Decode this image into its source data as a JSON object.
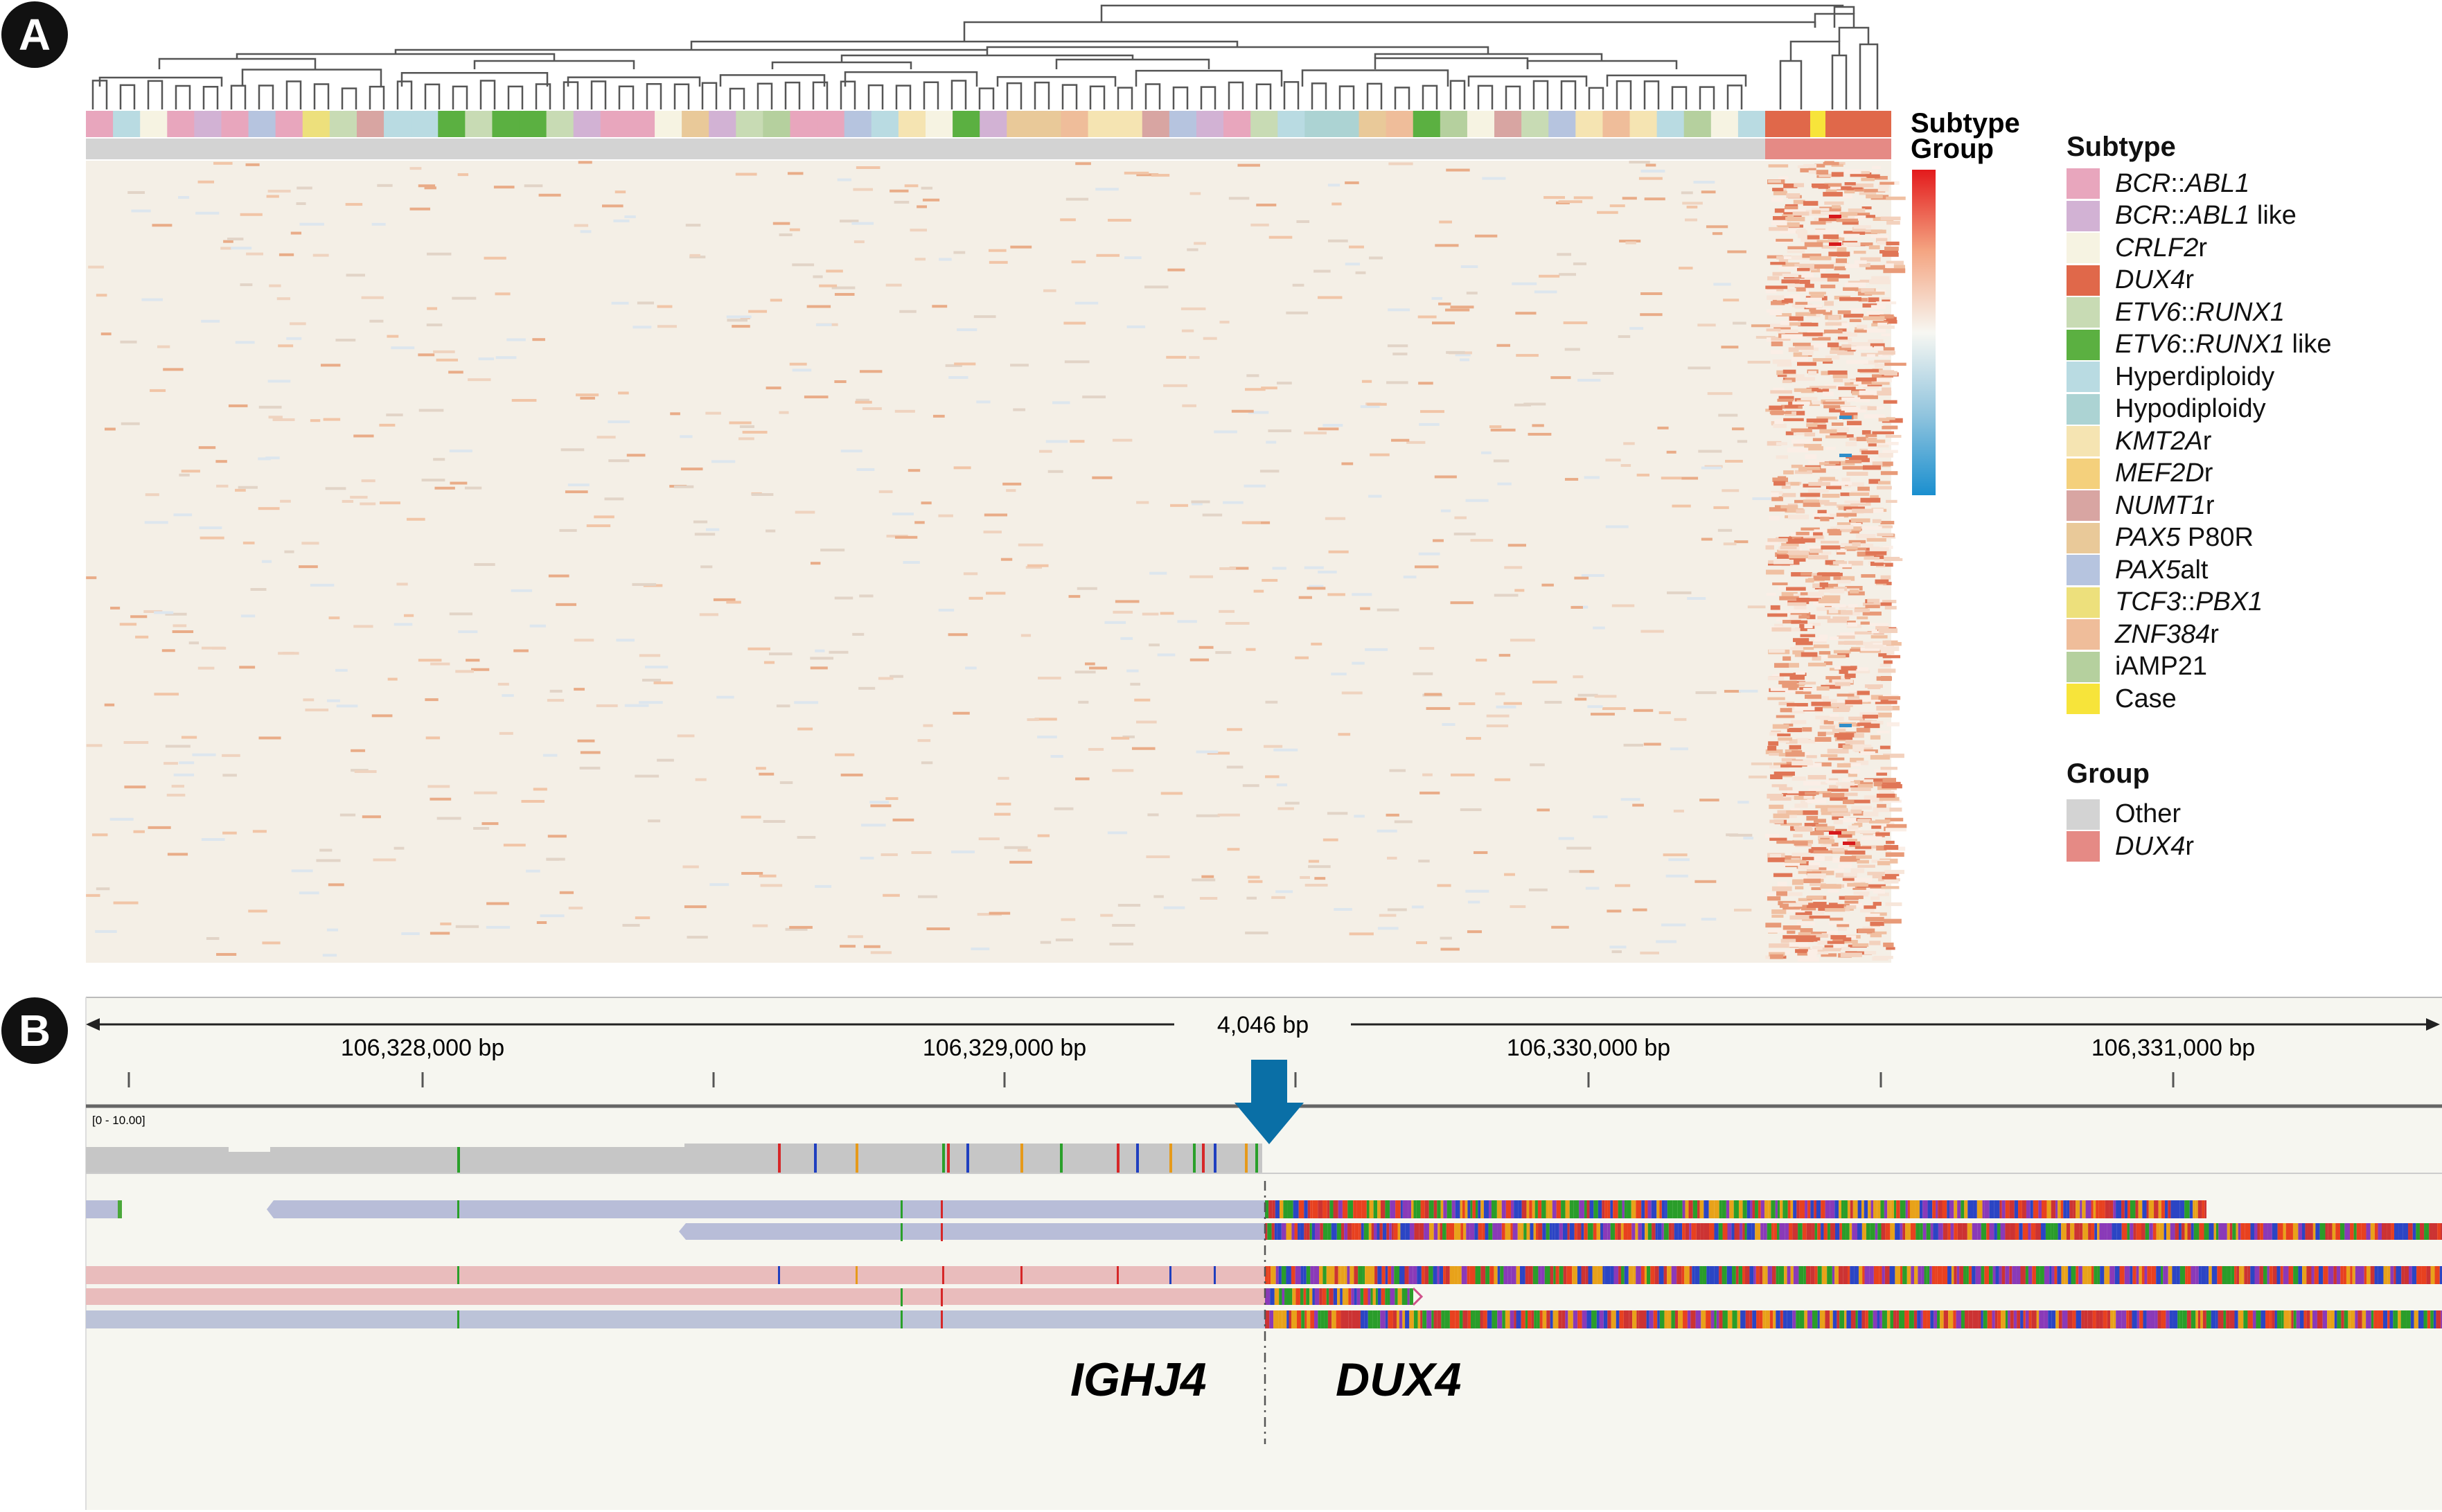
{
  "panel_a": {
    "label": "A",
    "track_labels": [
      "Subtype",
      "Group"
    ],
    "legend": {
      "subtype_title": "Subtype",
      "subtypes": [
        {
          "parts": [
            {
              "t": "BCR",
              "i": true
            },
            {
              "t": "::",
              "i": false
            },
            {
              "t": "ABL1",
              "i": true
            }
          ],
          "color": "#e8a6bd"
        },
        {
          "parts": [
            {
              "t": "BCR",
              "i": true
            },
            {
              "t": "::",
              "i": false
            },
            {
              "t": "ABL1",
              "i": true
            },
            {
              "t": " like",
              "i": false
            }
          ],
          "color": "#d2b2d4"
        },
        {
          "parts": [
            {
              "t": "CRLF2",
              "i": true
            },
            {
              "t": "r",
              "i": false
            }
          ],
          "color": "#f6f3e2"
        },
        {
          "parts": [
            {
              "t": "DUX4",
              "i": true
            },
            {
              "t": "r",
              "i": false
            }
          ],
          "color": "#e0684a"
        },
        {
          "parts": [
            {
              "t": "ETV6",
              "i": true
            },
            {
              "t": "::",
              "i": false
            },
            {
              "t": "RUNX1",
              "i": true
            }
          ],
          "color": "#c8dbb4"
        },
        {
          "parts": [
            {
              "t": "ETV6",
              "i": true
            },
            {
              "t": "::",
              "i": false
            },
            {
              "t": "RUNX1",
              "i": true
            },
            {
              "t": " like",
              "i": false
            }
          ],
          "color": "#5bb041"
        },
        {
          "parts": [
            {
              "t": "Hyperdiploidy",
              "i": false
            }
          ],
          "color": "#b9dbe2"
        },
        {
          "parts": [
            {
              "t": "Hypodiploidy",
              "i": false
            }
          ],
          "color": "#acd3d3"
        },
        {
          "parts": [
            {
              "t": "KMT2A",
              "i": true
            },
            {
              "t": "r",
              "i": false
            }
          ],
          "color": "#f5e4b2"
        },
        {
          "parts": [
            {
              "t": "MEF2D",
              "i": true
            },
            {
              "t": "r",
              "i": false
            }
          ],
          "color": "#f4d07c"
        },
        {
          "parts": [
            {
              "t": "NUMT1",
              "i": true
            },
            {
              "t": "r",
              "i": false
            }
          ],
          "color": "#d8a5a2"
        },
        {
          "parts": [
            {
              "t": "PAX5",
              "i": true
            },
            {
              "t": " P80R",
              "i": false
            }
          ],
          "color": "#e9c999"
        },
        {
          "parts": [
            {
              "t": "PAX5",
              "i": true
            },
            {
              "t": "alt",
              "i": false
            }
          ],
          "color": "#b6c4df"
        },
        {
          "parts": [
            {
              "t": "TCF3",
              "i": true
            },
            {
              "t": "::",
              "i": false
            },
            {
              "t": "PBX1",
              "i": true
            }
          ],
          "color": "#ede07c"
        },
        {
          "parts": [
            {
              "t": "ZNF384",
              "i": true
            },
            {
              "t": "r",
              "i": false
            }
          ],
          "color": "#efbd9a"
        },
        {
          "parts": [
            {
              "t": "iAMP21",
              "i": false
            }
          ],
          "color": "#b5d09e"
        },
        {
          "parts": [
            {
              "t": "Case",
              "i": false
            }
          ],
          "color": "#f7e43a"
        }
      ],
      "group_title": "Group",
      "groups": [
        {
          "parts": [
            {
              "t": "Other",
              "i": false
            }
          ],
          "color": "#d3d3d3"
        },
        {
          "parts": [
            {
              "t": "DUX4",
              "i": true
            },
            {
              "t": "r",
              "i": false
            }
          ],
          "color": "#e58a85"
        }
      ]
    },
    "colorscale": [
      "#e31a1c",
      "#f4a582",
      "#f7f7f2",
      "#92c5de",
      "#1a8fcf"
    ]
  },
  "panel_b": {
    "label": "B",
    "span_label": "4,046 bp",
    "ruler_labels": [
      "106,328,000 bp",
      "106,329,000 bp",
      "106,330,000 bp",
      "106,331,000 bp"
    ],
    "range_label": "[0 - 10.00]",
    "gene_left": "IGHJ4",
    "gene_right": "DUX4",
    "arrow_color": "#0a6fa6"
  }
}
